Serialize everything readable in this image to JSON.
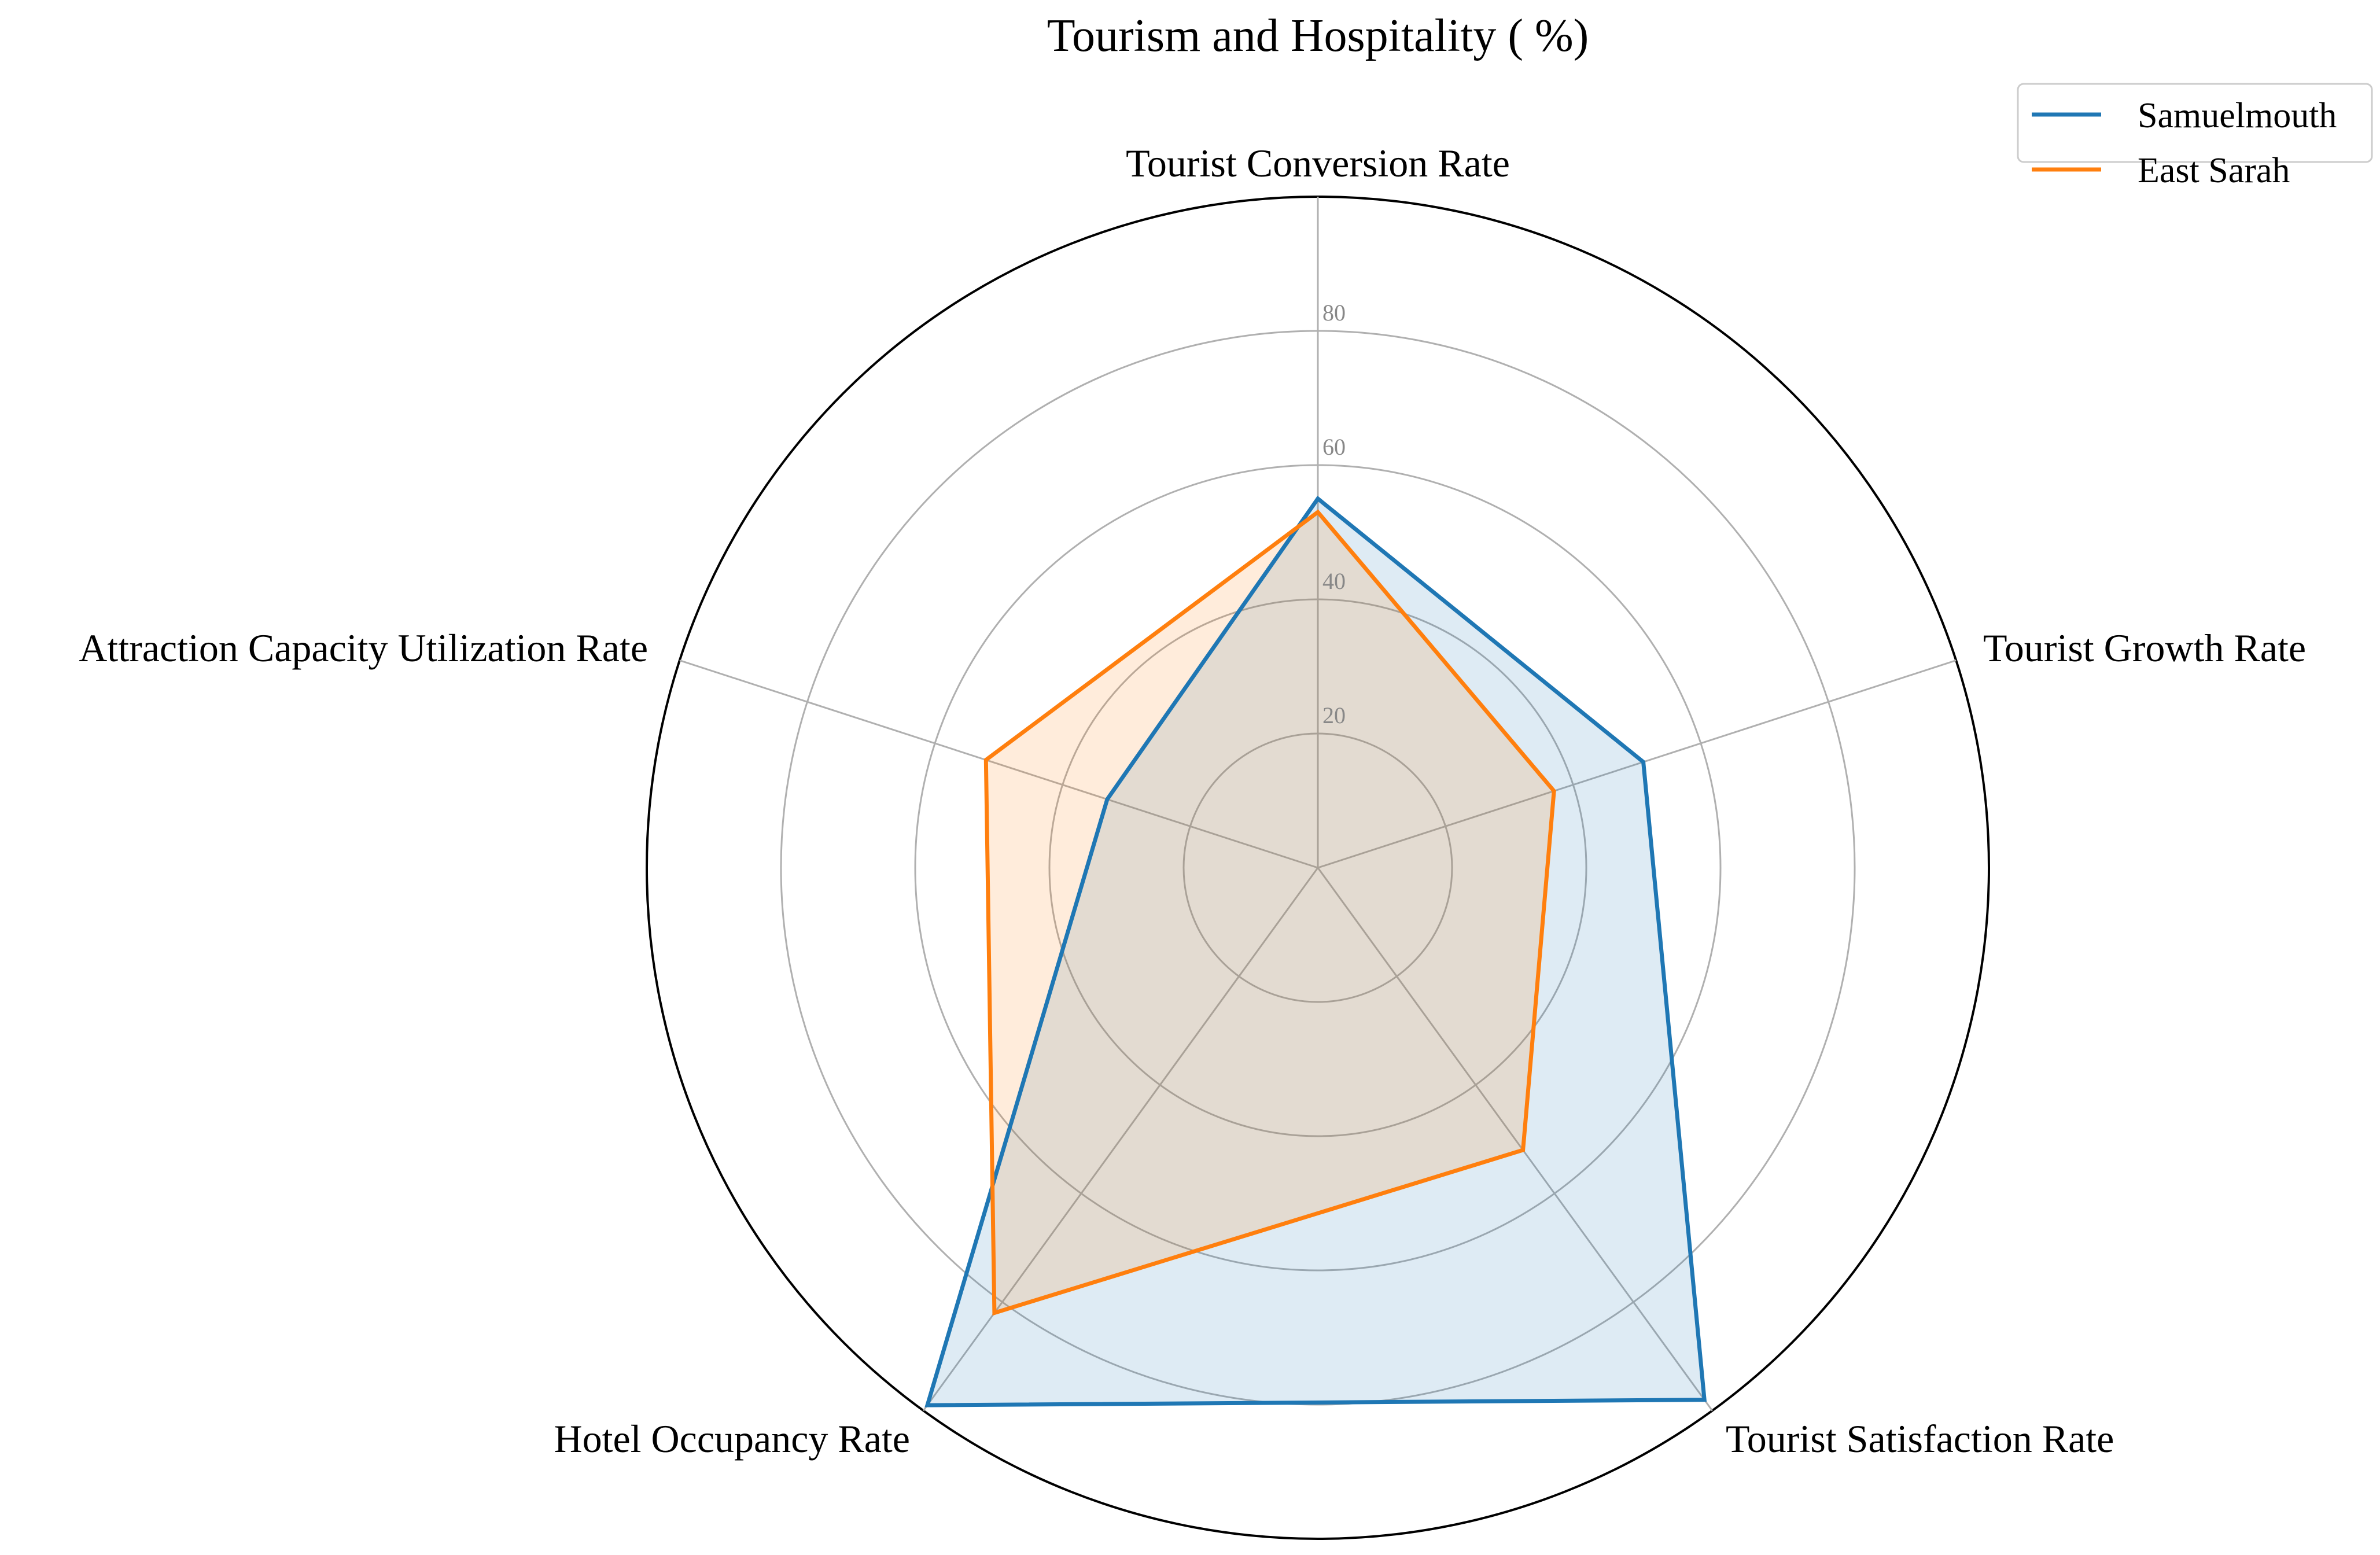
{
  "chart_data": {
    "type": "radar",
    "title": "Tourism and Hospitality ( %)",
    "categories": [
      "Tourist Conversion Rate",
      "Tourist Growth Rate",
      "Tourist Satisfaction Rate",
      "Hotel Occupancy Rate",
      "Attraction Capacity Utilization Rate"
    ],
    "rmax": 100,
    "rticks": [
      20,
      40,
      60,
      80
    ],
    "rtick_labels": [
      "20",
      "40",
      "60",
      "80"
    ],
    "grid": true,
    "legend_position": "top-right",
    "series": [
      {
        "name": "Samuelmouth",
        "color": "#1f77b4",
        "values": [
          55,
          51,
          98,
          99,
          33
        ]
      },
      {
        "name": "East Sarah",
        "color": "#ff7f0e",
        "values": [
          53,
          37,
          52,
          82,
          52
        ]
      }
    ]
  }
}
